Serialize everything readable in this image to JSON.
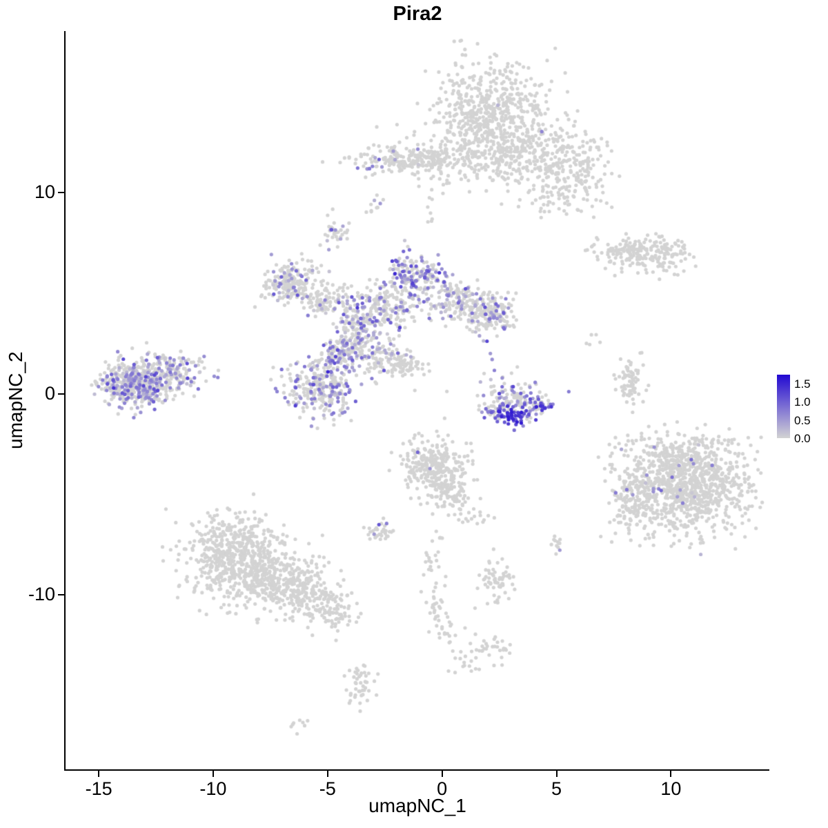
{
  "title": "Pira2",
  "chart_data": {
    "type": "scatter",
    "title": "Pira2",
    "xlabel": "umapNC_1",
    "ylabel": "umapNC_2",
    "xlim": [
      -16.45,
      14.3
    ],
    "ylim": [
      -18.65,
      18.0
    ],
    "x_ticks": [
      -15,
      -10,
      -5,
      0,
      5,
      10
    ],
    "y_ticks": [
      -10,
      0,
      10
    ],
    "grid": false,
    "legend_position": "right",
    "point_radius": 2.6,
    "color_scale": {
      "low": "#d3d3d3",
      "high": "#2209d2",
      "domain": [
        0,
        1.75
      ],
      "legend_values": [
        1.5,
        1.0,
        0.5,
        0.0
      ]
    },
    "clusters": [
      {
        "name": "top-blob-core",
        "n": 620,
        "cx": 2.0,
        "cy": 13.8,
        "sx": 1.25,
        "sy": 1.35,
        "expr_frac": 0.001,
        "expr_mean": 0.4
      },
      {
        "name": "top-blob-right",
        "n": 260,
        "cx": 4.4,
        "cy": 11.9,
        "sx": 1.2,
        "sy": 0.9,
        "expr_frac": 0.002,
        "expr_mean": 0.4
      },
      {
        "name": "top-blob-far-right",
        "n": 130,
        "cx": 5.7,
        "cy": 10.4,
        "sx": 0.8,
        "sy": 0.75,
        "expr_frac": 0,
        "expr_mean": 0.4
      },
      {
        "name": "top-blob-lower",
        "n": 90,
        "cx": 1.6,
        "cy": 11.7,
        "sx": 1.3,
        "sy": 0.7,
        "expr_frac": 0,
        "expr_mean": 0.4
      },
      {
        "name": "band-center",
        "n": 230,
        "cx": -1.4,
        "cy": 11.6,
        "sx": 1.2,
        "sy": 0.35,
        "expr_frac": 0.02,
        "expr_mean": 0.45
      },
      {
        "name": "band-left-purple",
        "n": 14,
        "cx": -3.1,
        "cy": 11.5,
        "sx": 0.25,
        "sy": 0.25,
        "expr_frac": 0.5,
        "expr_mean": 0.6
      },
      {
        "name": "dots-upper-mid",
        "n": 10,
        "cx": -2.9,
        "cy": 9.2,
        "sx": 0.2,
        "sy": 0.3,
        "expr_frac": 0.25,
        "expr_mean": 0.55
      },
      {
        "name": "small-upper-cluster",
        "n": 35,
        "cx": -4.6,
        "cy": 7.9,
        "sx": 0.35,
        "sy": 0.45,
        "expr_frac": 0.3,
        "expr_mean": 0.55
      },
      {
        "name": "mid-chain-dots",
        "n": 8,
        "cx": -0.7,
        "cy": 9.3,
        "sx": 0.25,
        "sy": 0.5,
        "expr_frac": 0,
        "expr_mean": 0.4
      },
      {
        "name": "stray-top-right",
        "n": 8,
        "cx": 3.8,
        "cy": 9.3,
        "sx": 0.6,
        "sy": 0.4,
        "expr_frac": 0,
        "expr_mean": 0.4
      },
      {
        "name": "right-mid-left-lobe",
        "n": 90,
        "cx": 7.8,
        "cy": 7.1,
        "sx": 0.7,
        "sy": 0.3,
        "expr_frac": 0.01,
        "expr_mean": 0.4
      },
      {
        "name": "right-mid-right-lobe",
        "n": 140,
        "cx": 9.4,
        "cy": 6.9,
        "sx": 0.8,
        "sy": 0.5,
        "expr_frac": 0.005,
        "expr_mean": 0.4
      },
      {
        "name": "central-left-lobe",
        "n": 210,
        "cx": -6.6,
        "cy": 5.5,
        "sx": 0.6,
        "sy": 0.5,
        "expr_frac": 0.12,
        "expr_mean": 0.5
      },
      {
        "name": "central-top-peak",
        "n": 170,
        "cx": -1.2,
        "cy": 5.9,
        "sx": 0.55,
        "sy": 0.55,
        "expr_frac": 0.45,
        "expr_mean": 0.7
      },
      {
        "name": "central-diag-branch",
        "n": 150,
        "cx": 0.7,
        "cy": 4.6,
        "sx": 0.85,
        "sy": 0.5,
        "rot": -25,
        "expr_frac": 0.3,
        "expr_mean": 0.55
      },
      {
        "name": "central-right-lobe",
        "n": 170,
        "cx": 2.0,
        "cy": 3.9,
        "sx": 0.6,
        "sy": 0.5,
        "expr_frac": 0.25,
        "expr_mean": 0.55
      },
      {
        "name": "central-mid",
        "n": 190,
        "cx": -2.4,
        "cy": 4.3,
        "sx": 0.85,
        "sy": 0.6,
        "expr_frac": 0.25,
        "expr_mean": 0.5
      },
      {
        "name": "central-left-bridge",
        "n": 90,
        "cx": -5.0,
        "cy": 4.6,
        "sx": 0.6,
        "sy": 0.4,
        "expr_frac": 0.15,
        "expr_mean": 0.5
      },
      {
        "name": "central-down-branch",
        "n": 150,
        "cx": -3.7,
        "cy": 2.9,
        "sx": 0.45,
        "sy": 0.75,
        "expr_frac": 0.3,
        "expr_mean": 0.55
      },
      {
        "name": "central-knot",
        "n": 90,
        "cx": -4.5,
        "cy": 2.1,
        "sx": 0.4,
        "sy": 0.4,
        "expr_frac": 0.5,
        "expr_mean": 0.7
      },
      {
        "name": "central-scatter",
        "n": 70,
        "cx": -2.8,
        "cy": 1.9,
        "sx": 0.55,
        "sy": 0.5,
        "expr_frac": 0.2,
        "expr_mean": 0.5
      },
      {
        "name": "diag-streak",
        "n": 70,
        "cx": -1.7,
        "cy": 1.4,
        "sx": 0.5,
        "sy": 0.3,
        "rot": -40,
        "expr_frac": 0.08,
        "expr_mean": 0.45
      },
      {
        "name": "midleft-cluster",
        "n": 290,
        "cx": -5.3,
        "cy": 0.3,
        "sx": 0.75,
        "sy": 0.75,
        "expr_frac": 0.3,
        "expr_mean": 0.55
      },
      {
        "name": "left-cluster-core",
        "n": 470,
        "cx": -13.4,
        "cy": 0.5,
        "sx": 0.8,
        "sy": 0.6,
        "expr_frac": 0.4,
        "expr_mean": 0.55
      },
      {
        "name": "left-cluster-east",
        "n": 160,
        "cx": -11.8,
        "cy": 1.1,
        "sx": 0.8,
        "sy": 0.5,
        "expr_frac": 0.3,
        "expr_mean": 0.5
      },
      {
        "name": "smile-upper",
        "n": 120,
        "cx": 3.2,
        "cy": -0.2,
        "sx": 0.8,
        "sy": 0.4,
        "expr_frac": 0.35,
        "expr_mean": 0.6
      },
      {
        "name": "smile-left",
        "n": 40,
        "cx": 2.4,
        "cy": -0.8,
        "sx": 0.35,
        "sy": 0.22,
        "rot": 20,
        "expr_frac": 0.75,
        "expr_mean": 0.9
      },
      {
        "name": "smile-bottom",
        "n": 55,
        "cx": 3.3,
        "cy": -1.1,
        "sx": 0.45,
        "sy": 0.2,
        "expr_frac": 0.85,
        "expr_mean": 1.2
      },
      {
        "name": "smile-right",
        "n": 35,
        "cx": 4.2,
        "cy": -0.6,
        "sx": 0.3,
        "sy": 0.25,
        "rot": -30,
        "expr_frac": 0.7,
        "expr_mean": 1.0
      },
      {
        "name": "right-thin-vertical",
        "n": 70,
        "cx": 8.2,
        "cy": 0.5,
        "sx": 0.28,
        "sy": 0.65,
        "expr_frac": 0.02,
        "expr_mean": 0.4
      },
      {
        "name": "bigright-core",
        "n": 950,
        "cx": 10.8,
        "cy": -4.6,
        "sx": 1.3,
        "sy": 1.15,
        "expr_frac": 0.012,
        "expr_mean": 0.55
      },
      {
        "name": "bigright-left-tail",
        "n": 130,
        "cx": 8.3,
        "cy": -5.3,
        "sx": 0.5,
        "sy": 1.0,
        "expr_frac": 0.03,
        "expr_mean": 0.5
      },
      {
        "name": "bigright-top",
        "n": 110,
        "cx": 10.2,
        "cy": -2.9,
        "sx": 1.2,
        "sy": 0.45,
        "expr_frac": 0.03,
        "expr_mean": 0.5
      },
      {
        "name": "bottomleft-core",
        "n": 560,
        "cx": -9.0,
        "cy": -8.0,
        "sx": 1.05,
        "sy": 1.0,
        "expr_frac": 0,
        "expr_mean": 0
      },
      {
        "name": "bottomleft-mid",
        "n": 300,
        "cx": -7.3,
        "cy": -9.3,
        "sx": 1.0,
        "sy": 0.8,
        "expr_frac": 0,
        "expr_mean": 0
      },
      {
        "name": "bottomleft-tip",
        "n": 150,
        "cx": -5.7,
        "cy": -10.2,
        "sx": 0.8,
        "sy": 0.6,
        "expr_frac": 0,
        "expr_mean": 0
      },
      {
        "name": "bottomleft-end",
        "n": 40,
        "cx": -4.5,
        "cy": -11.0,
        "sx": 0.4,
        "sy": 0.5,
        "expr_frac": 0,
        "expr_mean": 0
      },
      {
        "name": "center-lower-blob",
        "n": 290,
        "cx": -0.3,
        "cy": -3.6,
        "sx": 0.72,
        "sy": 0.72,
        "expr_frac": 0.006,
        "expr_mean": 0.8
      },
      {
        "name": "center-lower-tail",
        "n": 60,
        "cx": 0.3,
        "cy": -4.9,
        "sx": 0.4,
        "sy": 0.45,
        "expr_frac": 0,
        "expr_mean": 0
      },
      {
        "name": "chain-1",
        "n": 25,
        "cx": 1.2,
        "cy": -6.0,
        "sx": 0.6,
        "sy": 0.4,
        "expr_frac": 0,
        "expr_mean": 0
      },
      {
        "name": "small-left-lower",
        "n": 35,
        "cx": -2.7,
        "cy": -6.8,
        "sx": 0.3,
        "sy": 0.25,
        "expr_frac": 0.1,
        "expr_mean": 0.5
      },
      {
        "name": "dots-right-lower",
        "n": 12,
        "cx": 5.0,
        "cy": -7.4,
        "sx": 0.2,
        "sy": 0.3,
        "expr_frac": 0.15,
        "expr_mean": 0.6
      },
      {
        "name": "chain-2",
        "n": 20,
        "cx": -0.5,
        "cy": -8.1,
        "sx": 0.3,
        "sy": 0.6,
        "expr_frac": 0,
        "expr_mean": 0
      },
      {
        "name": "chain-3",
        "n": 25,
        "cx": -0.2,
        "cy": -10.2,
        "sx": 0.3,
        "sy": 0.7,
        "expr_frac": 0,
        "expr_mean": 0
      },
      {
        "name": "chain-4",
        "n": 20,
        "cx": 0.3,
        "cy": -11.8,
        "sx": 0.4,
        "sy": 0.4,
        "expr_frac": 0,
        "expr_mean": 0
      },
      {
        "name": "lower-mid-cluster",
        "n": 60,
        "cx": 2.4,
        "cy": -9.3,
        "sx": 0.38,
        "sy": 0.55,
        "expr_frac": 0,
        "expr_mean": 0
      },
      {
        "name": "chain-5",
        "n": 32,
        "cx": 2.3,
        "cy": -12.6,
        "sx": 0.5,
        "sy": 0.35,
        "expr_frac": 0,
        "expr_mean": 0
      },
      {
        "name": "chain-6",
        "n": 15,
        "cx": 0.8,
        "cy": -13.4,
        "sx": 0.3,
        "sy": 0.3,
        "expr_frac": 0,
        "expr_mean": 0
      },
      {
        "name": "bottom-small-cluster",
        "n": 45,
        "cx": -3.6,
        "cy": -14.5,
        "sx": 0.3,
        "sy": 0.55,
        "expr_frac": 0,
        "expr_mean": 0
      },
      {
        "name": "bottom-tiny-dots",
        "n": 8,
        "cx": -6.2,
        "cy": -16.3,
        "sx": 0.25,
        "sy": 0.2,
        "expr_frac": 0,
        "expr_mean": 0
      },
      {
        "name": "stray-right-of-center",
        "n": 6,
        "cx": 2.3,
        "cy": 1.4,
        "sx": 0.6,
        "sy": 0.5,
        "expr_frac": 0.3,
        "expr_mean": 0.6
      },
      {
        "name": "stray-mid-right",
        "n": 5,
        "cx": 6.6,
        "cy": 2.6,
        "sx": 0.3,
        "sy": 0.2,
        "expr_frac": 0,
        "expr_mean": 0
      }
    ]
  }
}
